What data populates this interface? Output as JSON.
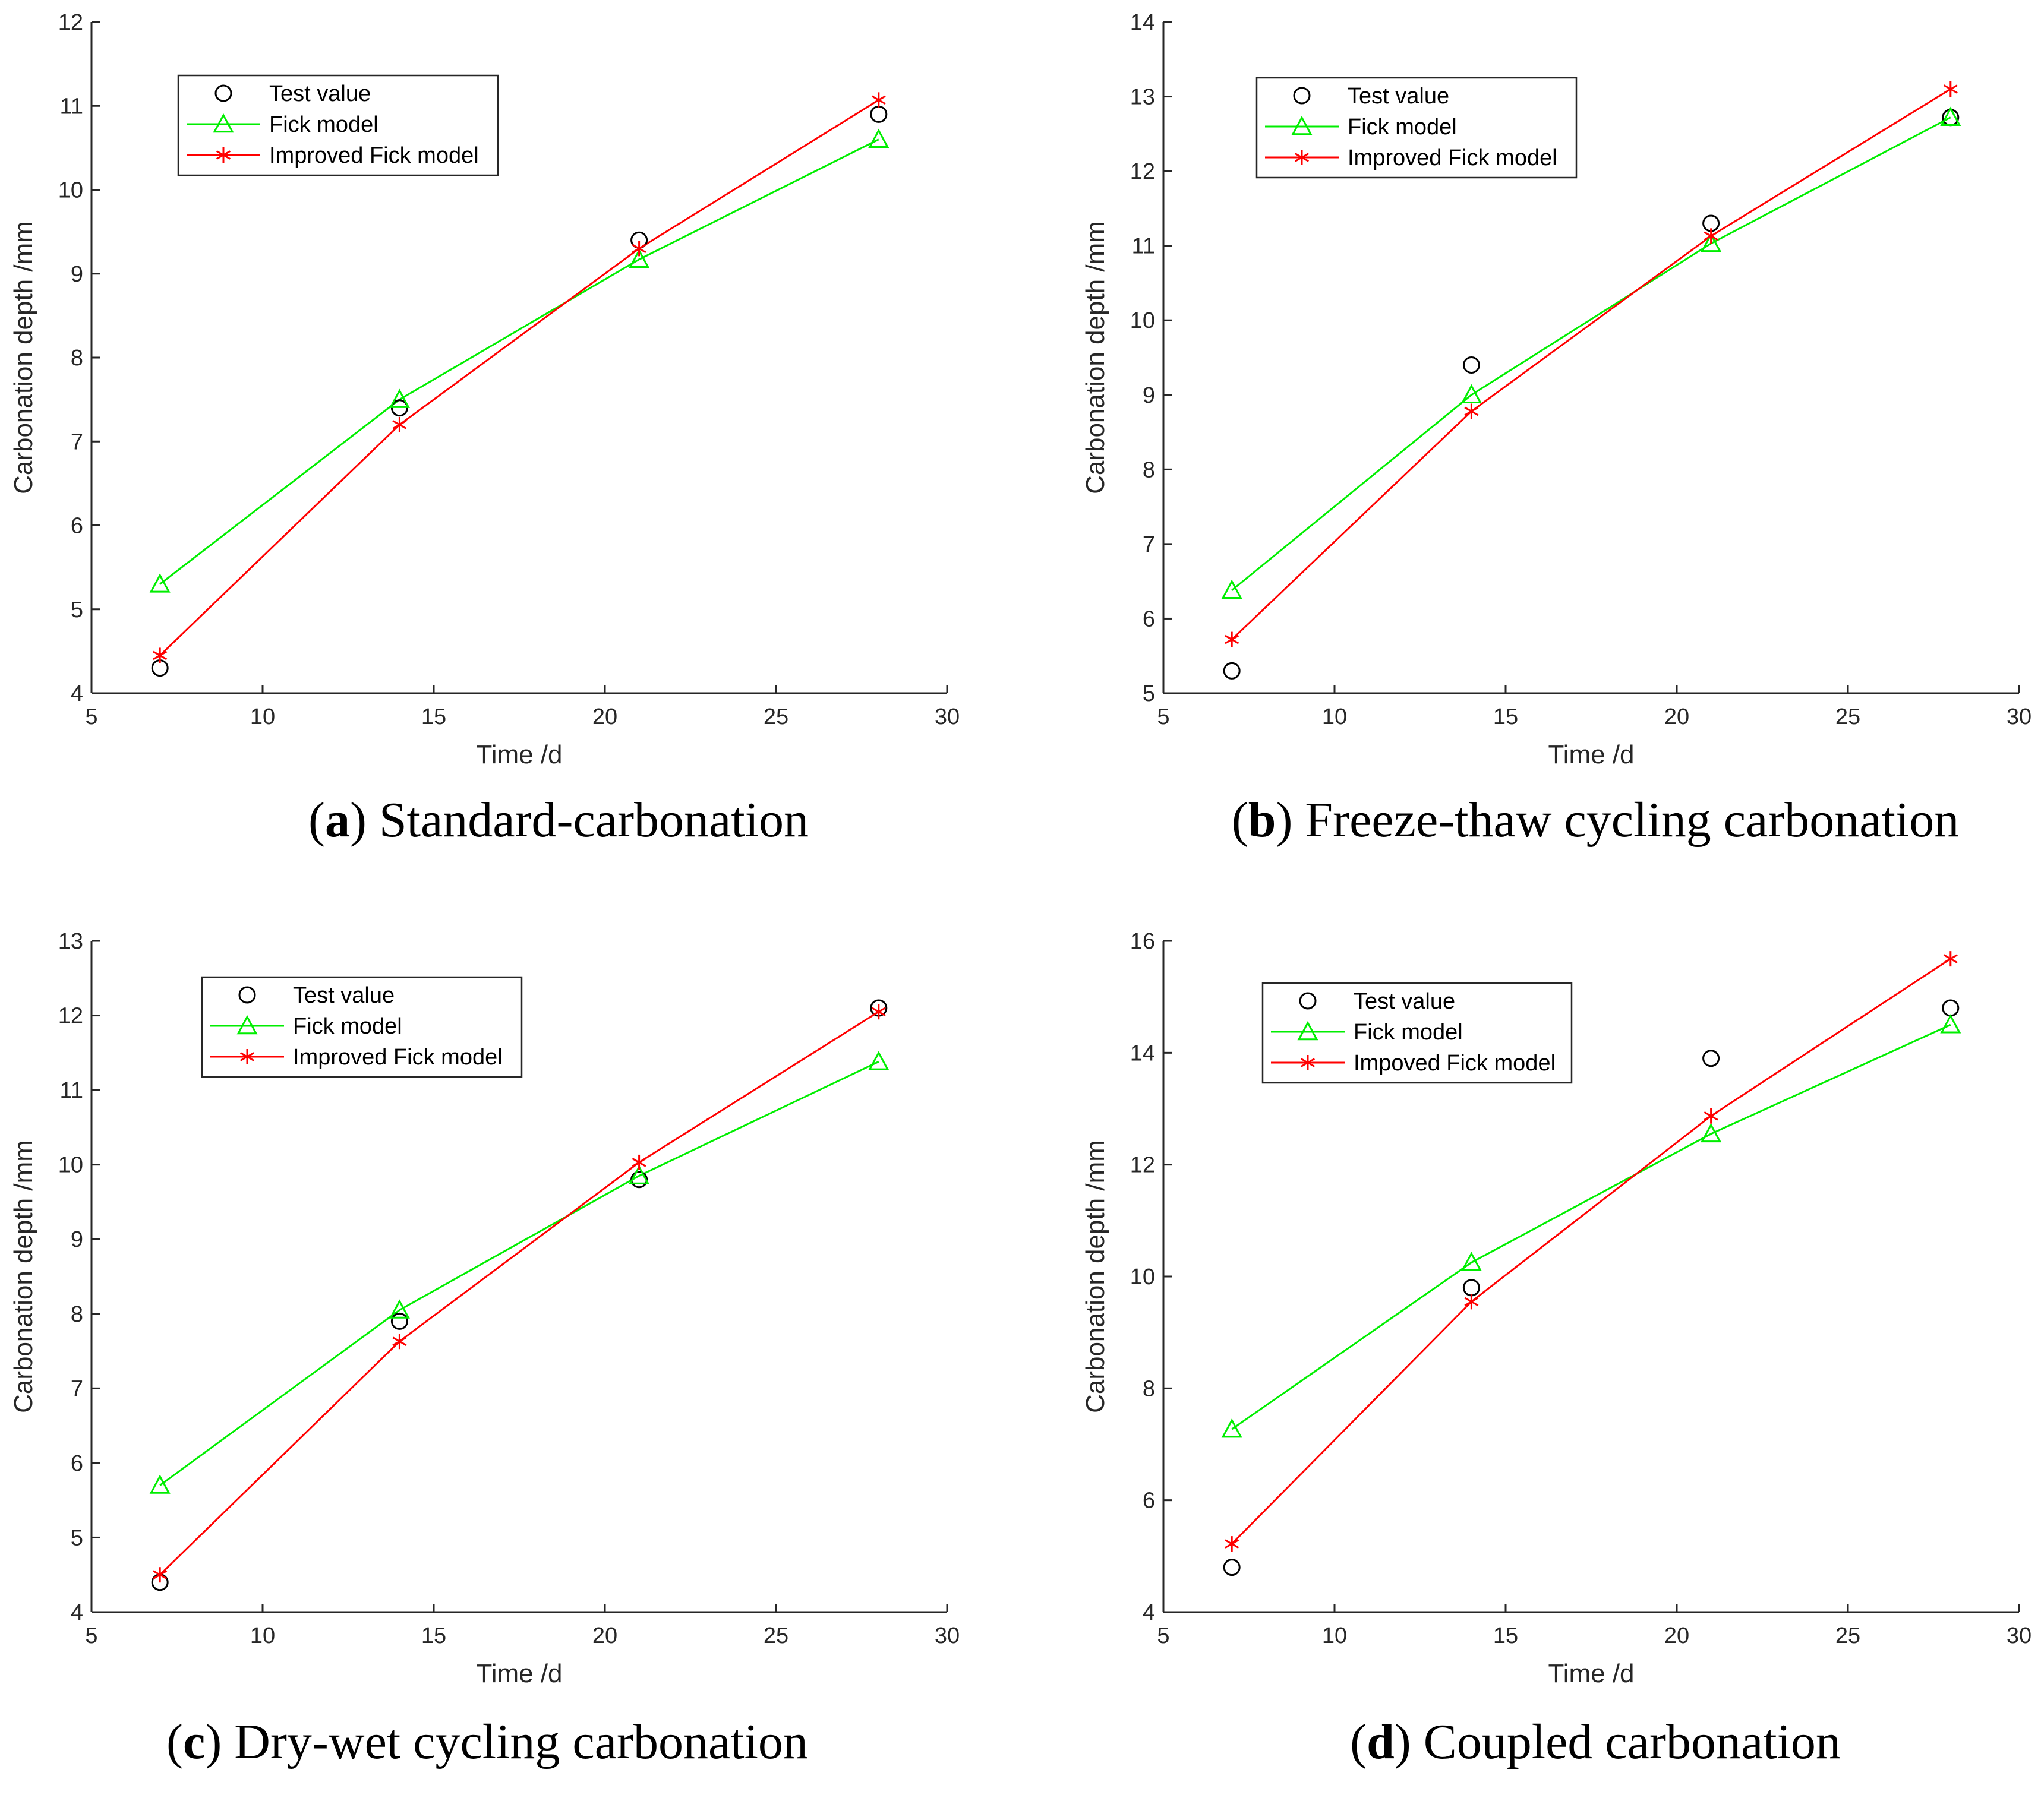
{
  "colors": {
    "test": "#000000",
    "fick": "#00ee00",
    "improved": "#ff0000",
    "axis": "#262626"
  },
  "chart_data": [
    {
      "type": "line",
      "panel": "a",
      "caption_letter": "a",
      "caption_text": "Standard-carbonation",
      "xlabel": "Time /d",
      "ylabel": "Carbonation depth /mm",
      "xlim": [
        5,
        30
      ],
      "ylim": [
        4,
        12
      ],
      "xticks": [
        "5",
        "10",
        "15",
        "20",
        "25",
        "30"
      ],
      "yticks": [
        "4",
        "5",
        "6",
        "7",
        "8",
        "9",
        "10",
        "11",
        "12"
      ],
      "legend_position": "top-left",
      "x": [
        7,
        14,
        21,
        28
      ],
      "series": [
        {
          "key": "test",
          "name": "Test value",
          "marker": "circle",
          "line": false,
          "values": [
            4.3,
            7.4,
            9.4,
            10.9
          ]
        },
        {
          "key": "fick",
          "name": "Fick model",
          "marker": "triangle",
          "line": true,
          "values": [
            5.3,
            7.5,
            9.17,
            10.6
          ]
        },
        {
          "key": "improved",
          "name": "Improved Fick model",
          "marker": "asterisk",
          "line": true,
          "values": [
            4.45,
            7.2,
            9.3,
            11.07
          ]
        }
      ]
    },
    {
      "type": "line",
      "panel": "b",
      "caption_letter": "b",
      "caption_text": "Freeze-thaw cycling carbonation",
      "xlabel": "Time /d",
      "ylabel": "Carbonation depth /mm",
      "xlim": [
        5,
        30
      ],
      "ylim": [
        5,
        14
      ],
      "xticks": [
        "5",
        "10",
        "15",
        "20",
        "25",
        "30"
      ],
      "yticks": [
        "5",
        "6",
        "7",
        "8",
        "9",
        "10",
        "11",
        "12",
        "13",
        "14"
      ],
      "legend_position": "top-left",
      "x": [
        7,
        14,
        21,
        28
      ],
      "series": [
        {
          "key": "test",
          "name": "Test value",
          "marker": "circle",
          "line": false,
          "values": [
            5.3,
            9.4,
            11.3,
            12.72
          ]
        },
        {
          "key": "fick",
          "name": "Fick model",
          "marker": "triangle",
          "line": true,
          "values": [
            6.38,
            9.0,
            11.03,
            12.72
          ]
        },
        {
          "key": "improved",
          "name": "Improved Fick model",
          "marker": "asterisk",
          "line": true,
          "values": [
            5.72,
            8.78,
            11.13,
            13.1
          ]
        }
      ]
    },
    {
      "type": "line",
      "panel": "c",
      "caption_letter": "c",
      "caption_text": "Dry-wet cycling carbonation",
      "xlabel": "Time /d",
      "ylabel": "Carbonation depth /mm",
      "xlim": [
        5,
        30
      ],
      "ylim": [
        4,
        13
      ],
      "xticks": [
        "5",
        "10",
        "15",
        "20",
        "25",
        "30"
      ],
      "yticks": [
        "4",
        "5",
        "6",
        "7",
        "8",
        "9",
        "10",
        "11",
        "12",
        "13"
      ],
      "legend_position": "top-left",
      "x": [
        7,
        14,
        21,
        28
      ],
      "series": [
        {
          "key": "test",
          "name": "Test value",
          "marker": "circle",
          "line": false,
          "values": [
            4.4,
            7.9,
            9.8,
            12.1
          ]
        },
        {
          "key": "fick",
          "name": "Fick model",
          "marker": "triangle",
          "line": true,
          "values": [
            5.7,
            8.05,
            9.85,
            11.38
          ]
        },
        {
          "key": "improved",
          "name": "Improved Fick model",
          "marker": "asterisk",
          "line": true,
          "values": [
            4.5,
            7.63,
            10.03,
            12.05
          ]
        }
      ]
    },
    {
      "type": "line",
      "panel": "d",
      "caption_letter": "d",
      "caption_text": "Coupled carbonation",
      "xlabel": "Time /d",
      "ylabel": "Carbonation depth /mm",
      "xlim": [
        5,
        30
      ],
      "ylim": [
        4,
        16
      ],
      "xticks": [
        "5",
        "10",
        "15",
        "20",
        "25",
        "30"
      ],
      "yticks": [
        "4",
        "6",
        "8",
        "10",
        "12",
        "14",
        "16"
      ],
      "legend_position": "top-left",
      "x": [
        7,
        14,
        21,
        28
      ],
      "series": [
        {
          "key": "test",
          "name": "Test value",
          "marker": "circle",
          "line": false,
          "values": [
            4.8,
            9.8,
            13.9,
            14.8
          ]
        },
        {
          "key": "fick",
          "name": "Fick model",
          "marker": "triangle",
          "line": true,
          "values": [
            7.27,
            10.25,
            12.55,
            14.5
          ]
        },
        {
          "key": "improved",
          "name": "Impoved Fick model",
          "marker": "asterisk",
          "line": true,
          "values": [
            5.22,
            9.55,
            12.87,
            15.68
          ]
        }
      ]
    }
  ]
}
